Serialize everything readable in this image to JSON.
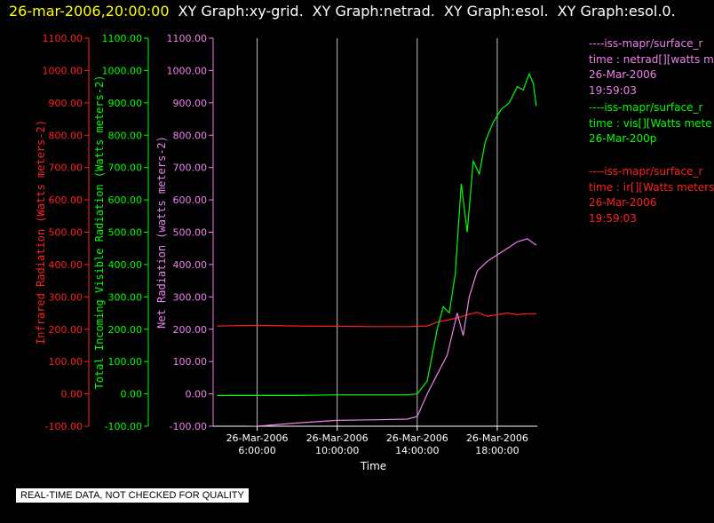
{
  "header": {
    "timestamp": "26-mar-2006,20:00:00",
    "graphs": [
      "XY Graph:xy-grid.",
      "XY Graph:netrad.",
      "XY Graph:esol.",
      "XY Graph:esol.0."
    ]
  },
  "legend": [
    {
      "lines": [
        "----iss-mapr/surface_r",
        "time : netrad[][watts me",
        "26-Mar-2006",
        "19:59:03"
      ]
    },
    {
      "lines": [
        "----iss-mapr/surface_r",
        "time : vis[][Watts mete",
        "26-Mar-200p"
      ]
    },
    {
      "lines": [
        "----iss-mapr/surface_r",
        "time : ir[][Watts meters",
        "26-Mar-2006",
        "19:59:03"
      ]
    }
  ],
  "disclaimer": "REAL-TIME DATA, NOT CHECKED FOR QUALITY",
  "colors": {
    "ir": "#ff2020",
    "vis": "#00ff00",
    "net": "#ee82ee",
    "grid": "#c0c0c0",
    "axis": "#ffffff"
  },
  "chart_data": {
    "type": "line",
    "xlabel": "Time",
    "x_ticks": [
      {
        "hours": 6,
        "date": "26-Mar-2006",
        "time": "6:00:00"
      },
      {
        "hours": 10,
        "date": "26-Mar-2006",
        "time": "10:00:00"
      },
      {
        "hours": 14,
        "date": "26-Mar-2006",
        "time": "14:00:00"
      },
      {
        "hours": 18,
        "date": "26-Mar-2006",
        "time": "18:00:00"
      }
    ],
    "xlim_hours": [
      3.8,
      20.0
    ],
    "ylim": [
      -100,
      1100
    ],
    "y_ticks": [
      "1100.00",
      "1000.00",
      "900.00",
      "800.00",
      "700.00",
      "600.00",
      "500.00",
      "400.00",
      "300.00",
      "200.00",
      "100.00",
      "0.00",
      "-100.00"
    ],
    "axes": [
      {
        "name": "ir-axis",
        "label": "Infrared Radiation (Watts meters-2)",
        "color": "#ff2020"
      },
      {
        "name": "vis-axis",
        "label": "Total Incoming Visible Radiation (Watts meters-2)",
        "color": "#00ff00"
      },
      {
        "name": "net-axis",
        "label": "Net Radiation (watts meters-2)",
        "color": "#ee82ee"
      }
    ],
    "series": [
      {
        "key": "ir",
        "color": "#ff2020",
        "x": [
          4.0,
          6.0,
          8.0,
          10.0,
          12.0,
          13.5,
          14.5,
          15.0,
          15.5,
          16.0,
          16.5,
          17.0,
          17.5,
          18.0,
          18.5,
          19.0,
          19.5,
          19.95
        ],
        "y": [
          210,
          212,
          210,
          209,
          208,
          208,
          210,
          222,
          228,
          235,
          245,
          252,
          240,
          245,
          250,
          245,
          248,
          248
        ]
      },
      {
        "key": "vis",
        "color": "#00ff00",
        "x": [
          4.0,
          6.0,
          8.0,
          10.0,
          12.0,
          13.5,
          14.0,
          14.5,
          15.0,
          15.3,
          15.6,
          15.9,
          16.2,
          16.5,
          16.8,
          17.1,
          17.4,
          17.8,
          18.2,
          18.6,
          19.0,
          19.3,
          19.6,
          19.8,
          19.95
        ],
        "y": [
          -5,
          -5,
          -5,
          -3,
          -3,
          -3,
          0,
          40,
          200,
          270,
          250,
          370,
          650,
          500,
          720,
          680,
          780,
          840,
          880,
          900,
          950,
          940,
          990,
          960,
          890
        ]
      },
      {
        "key": "net",
        "color": "#ee82ee",
        "x": [
          4.0,
          6.0,
          8.0,
          10.0,
          12.0,
          13.5,
          14.0,
          14.5,
          15.0,
          15.5,
          16.0,
          16.3,
          16.6,
          17.0,
          17.5,
          18.0,
          18.5,
          19.0,
          19.5,
          19.95
        ],
        "y": [
          -105,
          -100,
          -90,
          -82,
          -80,
          -78,
          -70,
          0,
          60,
          120,
          250,
          180,
          300,
          380,
          410,
          430,
          450,
          470,
          480,
          460
        ]
      }
    ]
  }
}
